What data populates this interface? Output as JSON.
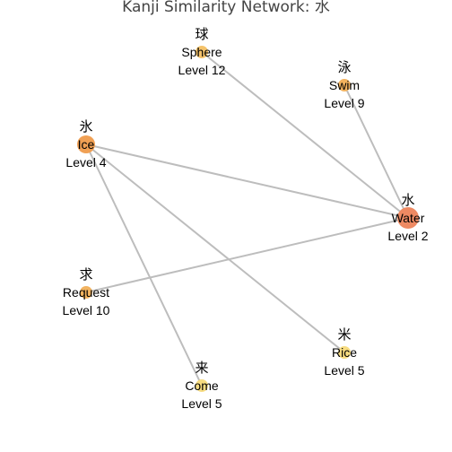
{
  "title": "Kanji Similarity Network: 水",
  "nodes": [
    {
      "id": "sphere",
      "kanji": "球",
      "meaning": "Sphere",
      "level_label": "Level 12",
      "level": 12,
      "color": "#f5c36b",
      "size": "small"
    },
    {
      "id": "swim",
      "kanji": "泳",
      "meaning": "Swim",
      "level_label": "Level 9",
      "level": 9,
      "color": "#f2b25e",
      "size": "small"
    },
    {
      "id": "ice",
      "kanji": "氷",
      "meaning": "Ice",
      "level_label": "Level 4",
      "level": 4,
      "color": "#f0a054",
      "size": "medium"
    },
    {
      "id": "water",
      "kanji": "水",
      "meaning": "Water",
      "level_label": "Level 2",
      "level": 2,
      "color": "#ee8a63",
      "size": "large"
    },
    {
      "id": "request",
      "kanji": "求",
      "meaning": "Request",
      "level_label": "Level 10",
      "level": 10,
      "color": "#f2b360",
      "size": "small"
    },
    {
      "id": "rice",
      "kanji": "米",
      "meaning": "Rice",
      "level_label": "Level 5",
      "level": 5,
      "color": "#f7dc80",
      "size": "small"
    },
    {
      "id": "come",
      "kanji": "来",
      "meaning": "Come",
      "level_label": "Level 5",
      "level": 5,
      "color": "#f7dc80",
      "size": "small"
    }
  ],
  "edges": [
    {
      "source": "sphere",
      "target": "water"
    },
    {
      "source": "swim",
      "target": "water"
    },
    {
      "source": "ice",
      "target": "water"
    },
    {
      "source": "request",
      "target": "water"
    },
    {
      "source": "ice",
      "target": "rice"
    },
    {
      "source": "ice",
      "target": "come"
    }
  ],
  "edge_color": "#bdbdbd"
}
